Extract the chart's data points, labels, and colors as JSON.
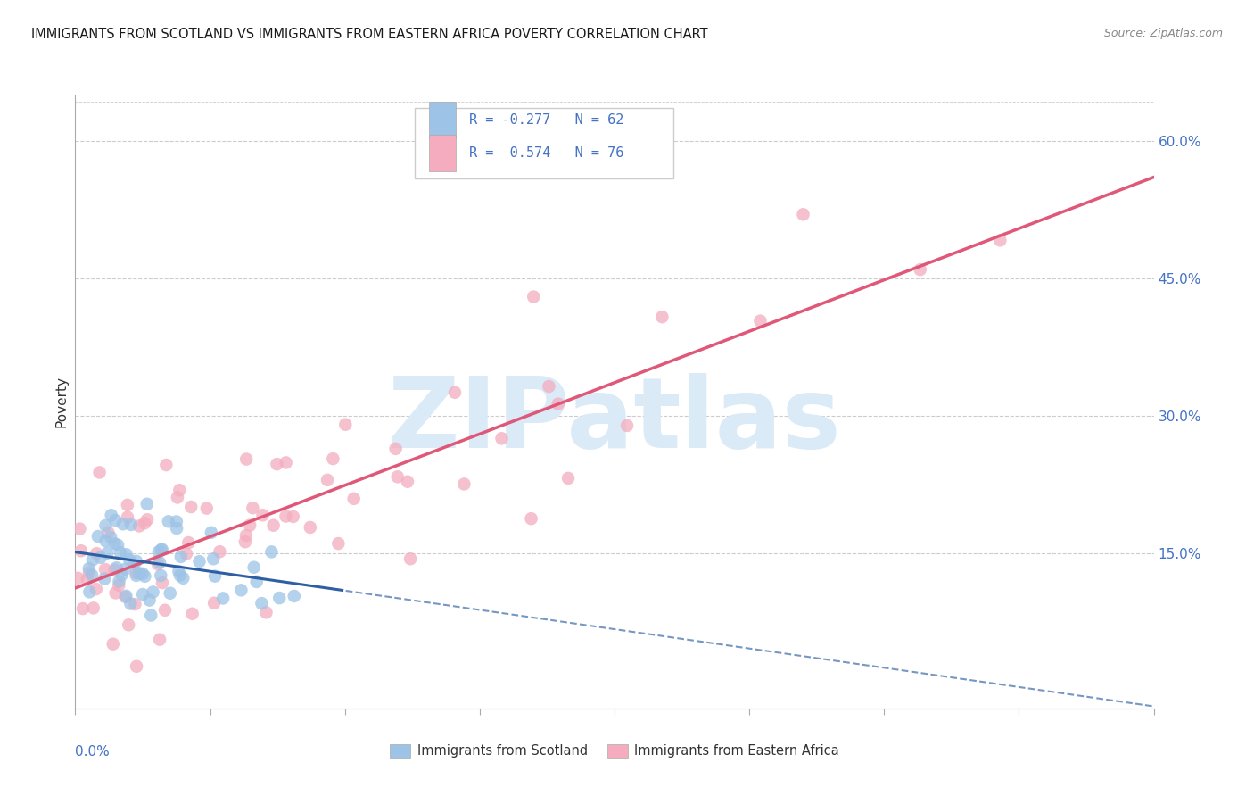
{
  "title": "IMMIGRANTS FROM SCOTLAND VS IMMIGRANTS FROM EASTERN AFRICA POVERTY CORRELATION CHART",
  "source": "Source: ZipAtlas.com",
  "ylabel": "Poverty",
  "yticks_right": [
    0.15,
    0.3,
    0.45,
    0.6
  ],
  "ytick_labels_right": [
    "15.0%",
    "30.0%",
    "45.0%",
    "60.0%"
  ],
  "xlim": [
    0.0,
    0.4
  ],
  "ylim": [
    -0.02,
    0.65
  ],
  "legend_label1": "Immigrants from Scotland",
  "legend_label2": "Immigrants from Eastern Africa",
  "color_scotland": "#9dc3e6",
  "color_eastern_africa": "#f4acbe",
  "color_line_scotland": "#2e5fa3",
  "color_line_eastern_africa": "#e05878",
  "color_title": "#1a1a1a",
  "color_axis_labels": "#4472c4",
  "color_watermark": "#daeaf7",
  "watermark_text": "ZIPatlas",
  "grid_color": "#cccccc",
  "background_color": "#ffffff",
  "xtick_positions": [
    0.0,
    0.05,
    0.1,
    0.15,
    0.2,
    0.25,
    0.3,
    0.35,
    0.4
  ]
}
